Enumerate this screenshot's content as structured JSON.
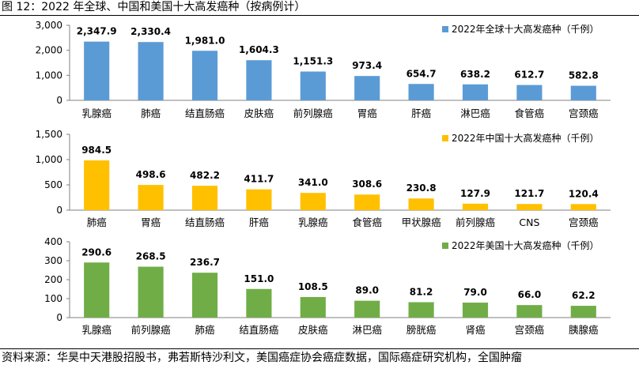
{
  "figure_title": "图 12：2022 年全球、中国和美国十大高发癌种（按病例计）",
  "source_note": "资料来源：华昊中天港股招股书，弗若斯特沙利文，美国癌症协会癌症数据，国际癌症研究机构，全国肿瘤",
  "chart_data": [
    {
      "type": "bar",
      "categories": [
        "乳腺癌",
        "肺癌",
        "结直肠癌",
        "皮肤癌",
        "前列腺癌",
        "胃癌",
        "肝癌",
        "淋巴癌",
        "食管癌",
        "宫颈癌"
      ],
      "series": [
        {
          "name": "2022年全球十大高发癌种（千例）",
          "color": "#5b9bd5",
          "values": [
            2347.9,
            2330.4,
            1981.0,
            1604.3,
            1151.3,
            973.4,
            654.7,
            638.2,
            612.7,
            582.8
          ],
          "labels": [
            "2,347.9",
            "2,330.4",
            "1,981.0",
            "1,604.3",
            "1,151.3",
            "973.4",
            "654.7",
            "638.2",
            "612.7",
            "582.8"
          ]
        }
      ],
      "yticks": [
        "0",
        "1,000",
        "2,000",
        "3,000"
      ],
      "ylim": [
        0,
        3000
      ],
      "legend_position": "top-right"
    },
    {
      "type": "bar",
      "categories": [
        "肺癌",
        "胃癌",
        "结直肠癌",
        "肝癌",
        "乳腺癌",
        "食管癌",
        "甲状腺癌",
        "前列腺癌",
        "CNS",
        "宫颈癌"
      ],
      "series": [
        {
          "name": "2022年中国十大高发癌种（千例）",
          "color": "#ffc000",
          "values": [
            984.5,
            498.6,
            482.2,
            411.7,
            341.0,
            308.6,
            230.8,
            127.9,
            121.7,
            120.4
          ],
          "labels": [
            "984.5",
            "498.6",
            "482.2",
            "411.7",
            "341.0",
            "308.6",
            "230.8",
            "127.9",
            "121.7",
            "120.4"
          ]
        }
      ],
      "yticks": [
        "0",
        "500",
        "1,000",
        "1,500"
      ],
      "ylim": [
        0,
        1500
      ],
      "legend_position": "top-right"
    },
    {
      "type": "bar",
      "categories": [
        "乳腺癌",
        "前列腺癌",
        "肺癌",
        "结直肠癌",
        "皮肤癌",
        "淋巴癌",
        "膀胱癌",
        "肾癌",
        "宫颈癌",
        "胰腺癌"
      ],
      "series": [
        {
          "name": "2022年美国十大高发癌种（千例）",
          "color": "#70ad47",
          "values": [
            290.6,
            268.5,
            236.7,
            151.0,
            108.5,
            89.0,
            81.2,
            79.0,
            66.0,
            62.2
          ],
          "labels": [
            "290.6",
            "268.5",
            "236.7",
            "151.0",
            "108.5",
            "89.0",
            "81.2",
            "79.0",
            "66.0",
            "62.2"
          ]
        }
      ],
      "yticks": [
        "0",
        "100",
        "200",
        "300",
        "400"
      ],
      "ylim": [
        0,
        400
      ],
      "legend_position": "top-right"
    }
  ]
}
